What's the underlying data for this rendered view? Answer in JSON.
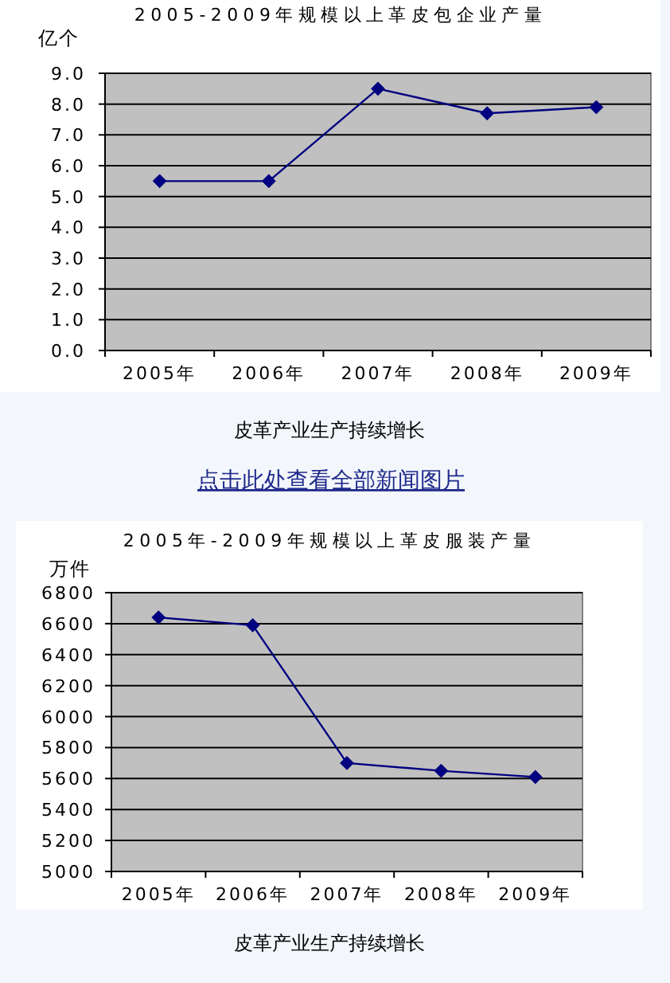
{
  "chart_data": [
    {
      "type": "line",
      "title": "2005-2009年规模以上革皮包企业产量",
      "ylabel": "亿个",
      "categories": [
        "2005年",
        "2006年",
        "2007年",
        "2008年",
        "2009年"
      ],
      "series": [
        {
          "color": "#000080",
          "values": [
            5.5,
            5.5,
            8.5,
            7.7,
            7.9
          ]
        }
      ],
      "ylim": [
        0,
        9
      ],
      "yticks": [
        {
          "value": 0,
          "label": "0.0"
        },
        {
          "value": 1,
          "label": "1.0"
        },
        {
          "value": 2,
          "label": "2.0"
        },
        {
          "value": 3,
          "label": "3.0"
        },
        {
          "value": 4,
          "label": "4.0"
        },
        {
          "value": 5,
          "label": "5.0"
        },
        {
          "value": 6,
          "label": "6.0"
        },
        {
          "value": 7,
          "label": "7.0"
        },
        {
          "value": 8,
          "label": "8.0"
        },
        {
          "value": 9,
          "label": "9.0"
        }
      ],
      "grid": "y",
      "marker": "diamond",
      "line_style": "solid",
      "annotations": [
        "皮革产业生产持续增长",
        "点击此处查看全部新闻图片"
      ]
    },
    {
      "type": "line",
      "title": "2005年-2009年规模以上革皮服装产量",
      "ylabel": "万件",
      "categories": [
        "2005年",
        "2006年",
        "2007年",
        "2008年",
        "2009年"
      ],
      "series": [
        {
          "color": "#000080",
          "values": [
            6640,
            6590,
            5700,
            5650,
            5610
          ]
        }
      ],
      "ylim": [
        5000,
        6800
      ],
      "yticks": [
        5000,
        5200,
        5400,
        5600,
        5800,
        6000,
        6200,
        6400,
        6600,
        6800
      ],
      "grid": "y",
      "marker": "diamond",
      "line_style": "solid",
      "annotations": [
        "皮革产业生产持续增长"
      ]
    }
  ]
}
